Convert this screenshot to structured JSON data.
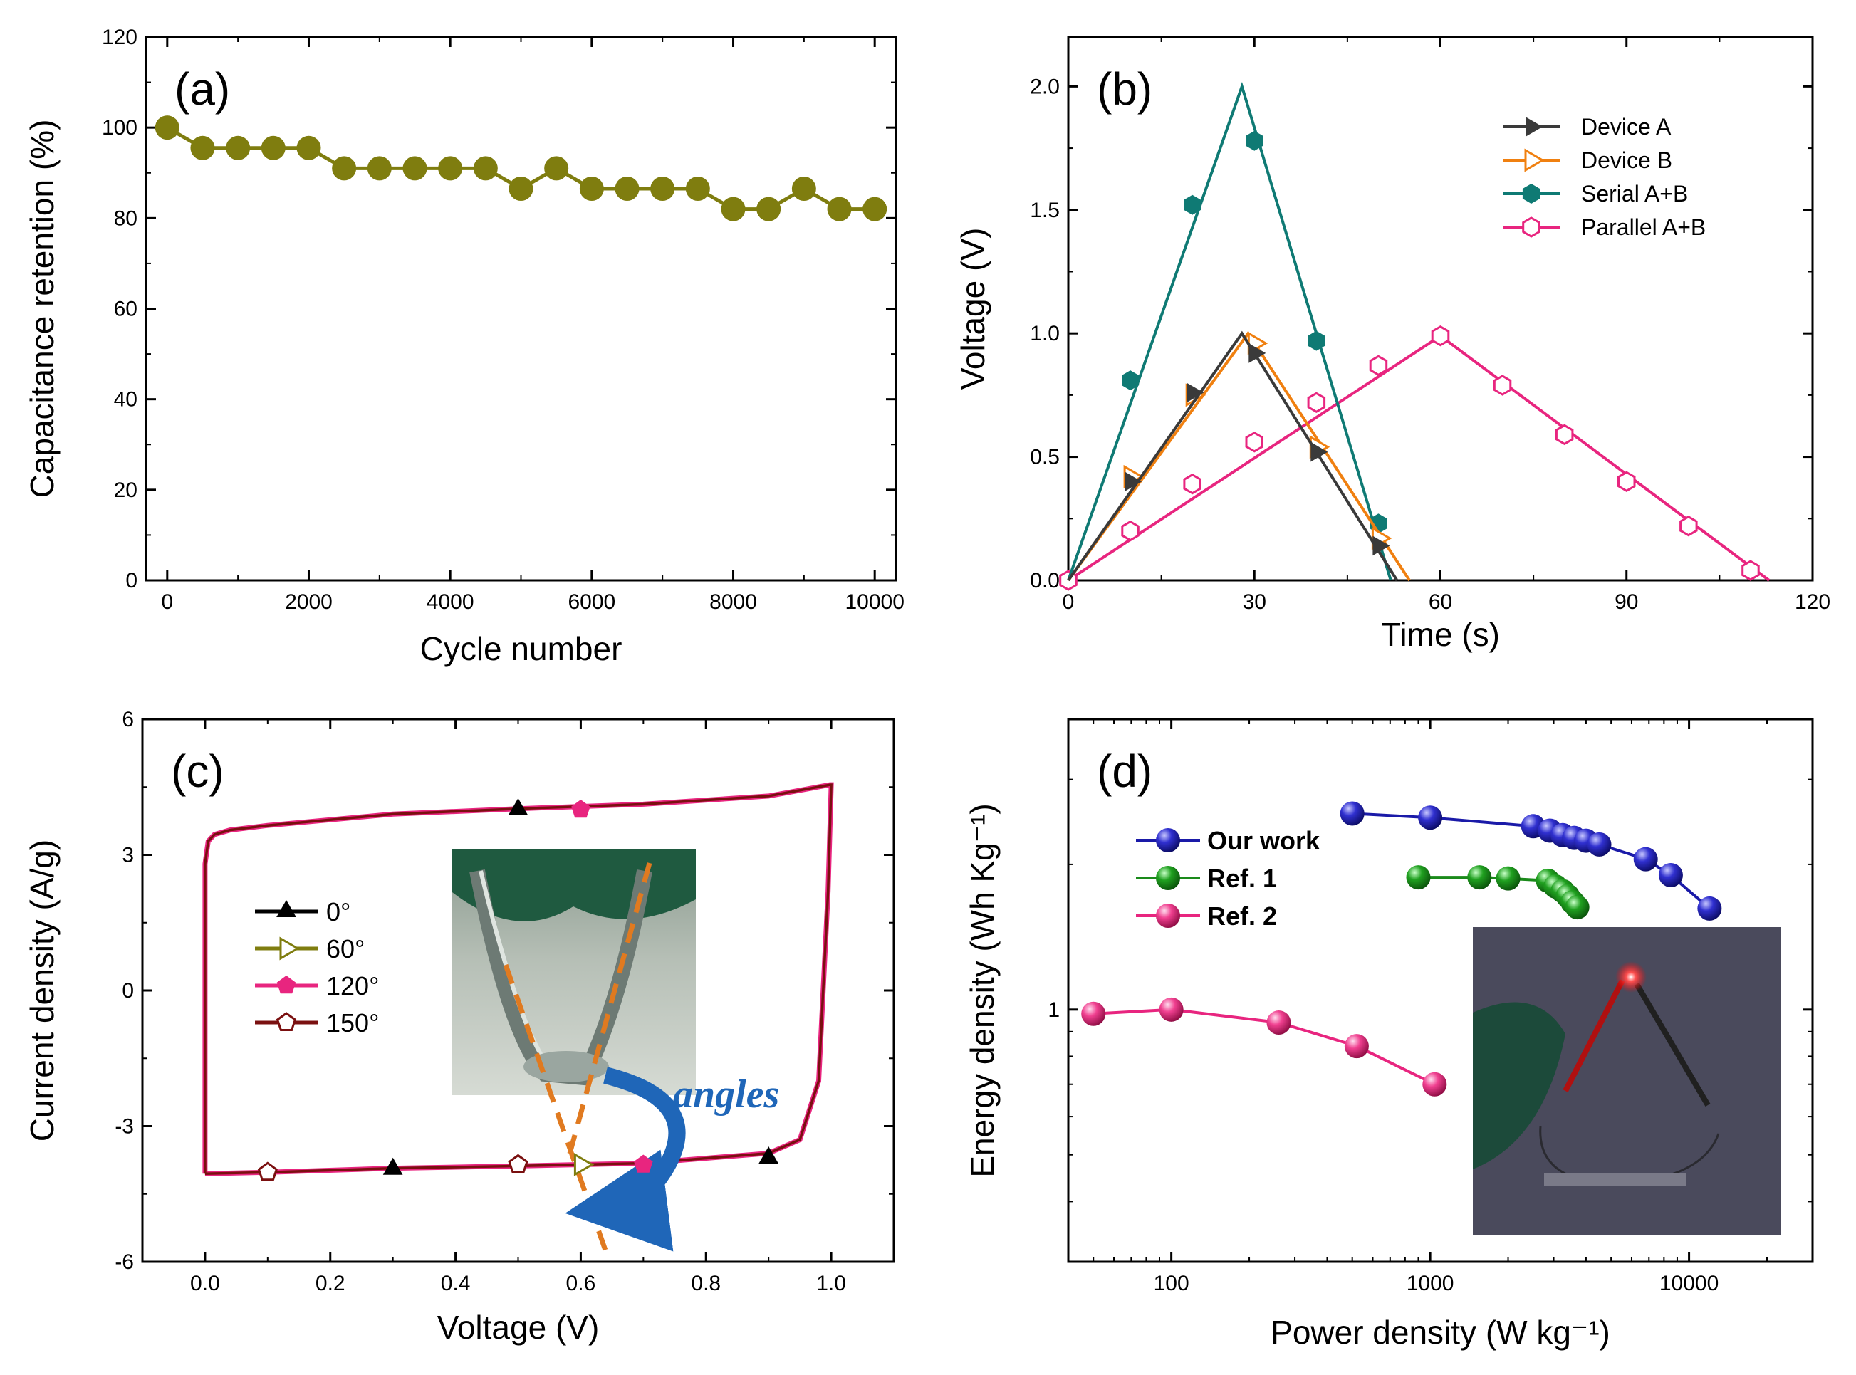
{
  "colors": {
    "olive": "#7f7d0f",
    "device_a": "#3a3a3a",
    "device_b": "#f08010",
    "serial": "#0f7a74",
    "parallel": "#e8257f",
    "cv_red": "#e8257f",
    "cv_dark": "#7a1010",
    "our_work": "#1a1aa8",
    "ref1": "#1a8a1a",
    "ref2": "#e8257f",
    "orange_dash": "#e07a20",
    "arrow_blue": "#1f66b8"
  },
  "chart_data": [
    {
      "id": "a",
      "type": "line",
      "panel_label": "(a)",
      "xlabel": "Cycle number",
      "ylabel": "Capacitance retention (%)",
      "xlim": [
        -300,
        10300
      ],
      "ylim": [
        0,
        120
      ],
      "xticks": [
        0,
        2000,
        4000,
        6000,
        8000,
        10000
      ],
      "yticks": [
        0,
        20,
        40,
        60,
        80,
        100,
        120
      ],
      "series": [
        {
          "name": "retention",
          "marker": "circle",
          "x": [
            0,
            500,
            1000,
            1500,
            2000,
            2500,
            3000,
            3500,
            4000,
            4500,
            5000,
            5500,
            6000,
            6500,
            7000,
            7500,
            8000,
            8500,
            9000,
            9500,
            10000
          ],
          "y": [
            100,
            95.5,
            95.5,
            95.5,
            95.5,
            91,
            91,
            91,
            91,
            91,
            86.5,
            91,
            86.5,
            86.5,
            86.5,
            86.5,
            82,
            82,
            86.5,
            82,
            82
          ]
        }
      ]
    },
    {
      "id": "b",
      "type": "line",
      "panel_label": "(b)",
      "xlabel": "Time (s)",
      "ylabel": "Voltage (V)",
      "xlim": [
        0,
        120
      ],
      "ylim": [
        0,
        2.2
      ],
      "xticks": [
        0,
        30,
        60,
        90,
        120
      ],
      "yticks": [
        0.0,
        0.5,
        1.0,
        1.5,
        2.0
      ],
      "ytick_labels": [
        "0.0",
        "0.5",
        "1.0",
        "1.5",
        "2.0"
      ],
      "legend_position": "top-right",
      "series": [
        {
          "name": "Device A",
          "marker": "triangle-right-filled",
          "line_x": [
            0,
            28,
            53
          ],
          "line_y": [
            0,
            1.0,
            0
          ],
          "mark_x": [
            10,
            20,
            30,
            40,
            50
          ],
          "mark_y": [
            0.4,
            0.76,
            0.92,
            0.52,
            0.14
          ]
        },
        {
          "name": "Device B",
          "marker": "triangle-right-open",
          "line_x": [
            0,
            29,
            55
          ],
          "line_y": [
            0,
            1.0,
            0
          ],
          "mark_x": [
            10,
            20,
            30,
            40,
            50
          ],
          "mark_y": [
            0.42,
            0.75,
            0.96,
            0.54,
            0.17
          ]
        },
        {
          "name": "Serial A+B",
          "marker": "hexagon-filled",
          "line_x": [
            0,
            28,
            52
          ],
          "line_y": [
            0,
            2.0,
            0
          ],
          "mark_x": [
            10,
            20,
            30,
            40,
            50
          ],
          "mark_y": [
            0.81,
            1.52,
            1.78,
            0.97,
            0.23
          ]
        },
        {
          "name": "Parallel A+B",
          "marker": "hexagon-open",
          "line_x": [
            0,
            60,
            113
          ],
          "line_y": [
            0,
            0.99,
            0
          ],
          "mark_x": [
            0,
            10,
            20,
            30,
            40,
            50,
            60,
            70,
            80,
            90,
            100,
            110
          ],
          "mark_y": [
            0,
            0.2,
            0.39,
            0.56,
            0.72,
            0.87,
            0.99,
            0.79,
            0.59,
            0.4,
            0.22,
            0.04
          ]
        }
      ]
    },
    {
      "id": "c",
      "type": "line",
      "panel_label": "(c)",
      "xlabel": "Voltage (V)",
      "ylabel": "Current density (A/g)",
      "xlim": [
        -0.1,
        1.1
      ],
      "ylim": [
        -6,
        6
      ],
      "xticks": [
        0.0,
        0.2,
        0.4,
        0.6,
        0.8,
        1.0
      ],
      "xtick_labels": [
        "0.0",
        "0.2",
        "0.4",
        "0.6",
        "0.8",
        "1.0"
      ],
      "yticks": [
        -6,
        -3,
        0,
        3,
        6
      ],
      "legend_position": "left",
      "cv_loop": {
        "x": [
          0.0,
          0.0,
          0.005,
          0.015,
          0.04,
          0.1,
          0.3,
          0.5,
          0.7,
          0.9,
          0.998,
          1.0,
          0.995,
          0.98,
          0.95,
          0.9,
          0.7,
          0.5,
          0.3,
          0.1,
          0.0
        ],
        "y": [
          -4.05,
          2.8,
          3.3,
          3.45,
          3.55,
          3.65,
          3.9,
          4.02,
          4.12,
          4.3,
          4.55,
          4.55,
          2.2,
          -2.0,
          -3.3,
          -3.6,
          -3.82,
          -3.88,
          -3.93,
          -4.02,
          -4.05
        ]
      },
      "series": [
        {
          "name": "0°",
          "marker": "triangle-filled",
          "x": [
            0.5,
            0.3,
            0.9
          ],
          "y": [
            4.0,
            -3.95,
            -3.7
          ]
        },
        {
          "name": "60°",
          "marker": "triangle-right-open",
          "x": [
            0.6
          ],
          "y": [
            -3.85
          ]
        },
        {
          "name": "120°",
          "marker": "pentagon-filled",
          "x": [
            0.6,
            0.7
          ],
          "y": [
            4.0,
            -3.85
          ]
        },
        {
          "name": "150°",
          "marker": "pentagon-open",
          "x": [
            0.1,
            0.5
          ],
          "y": [
            -4.02,
            -3.85
          ]
        }
      ],
      "annotation": "angles"
    },
    {
      "id": "d",
      "type": "scatter",
      "panel_label": "(d)",
      "xlabel": "Power density (W kg⁻¹)",
      "ylabel": "Energy density (Wh Kg⁻¹)",
      "xscale": "log",
      "yscale": "log",
      "xlim": [
        40,
        30000
      ],
      "ylim": [
        0.3,
        4.0
      ],
      "xticks": [
        100,
        1000,
        10000
      ],
      "yticks": [
        1
      ],
      "legend_position": "top-left",
      "series": [
        {
          "name": "Our work",
          "marker": "sphere",
          "x": [
            500,
            1000,
            2500,
            2900,
            3250,
            3600,
            4000,
            4500,
            6800,
            8500,
            12000
          ],
          "y": [
            2.55,
            2.5,
            2.4,
            2.35,
            2.3,
            2.27,
            2.24,
            2.2,
            2.05,
            1.9,
            1.62
          ]
        },
        {
          "name": "Ref. 1",
          "marker": "sphere",
          "x": [
            900,
            1550,
            2000,
            2850,
            3050,
            3250,
            3400,
            3550,
            3700
          ],
          "y": [
            1.88,
            1.88,
            1.87,
            1.85,
            1.8,
            1.76,
            1.72,
            1.67,
            1.63
          ]
        },
        {
          "name": "Ref. 2",
          "marker": "sphere",
          "x": [
            50,
            100,
            260,
            520,
            1040
          ],
          "y": [
            0.98,
            1.0,
            0.94,
            0.84,
            0.7
          ]
        }
      ]
    }
  ]
}
